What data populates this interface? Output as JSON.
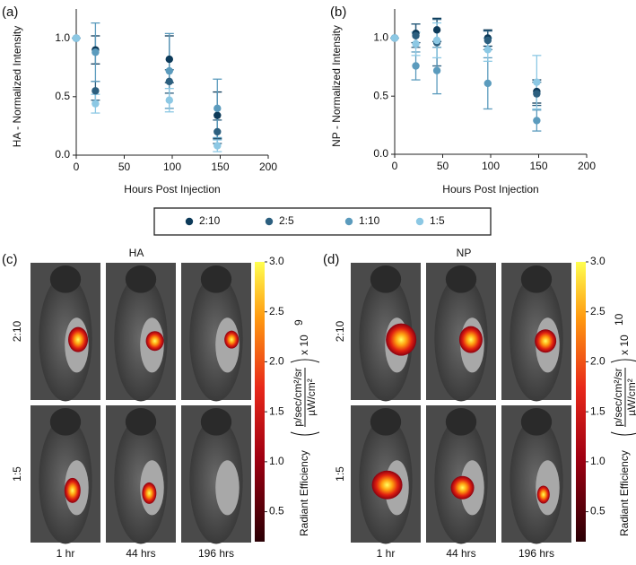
{
  "chart_data": [
    {
      "type": "scatter",
      "panel_label": "(a)",
      "y_label": "HA - Normalized Intensity",
      "x_label": "Hours Post Injection",
      "x": [
        0,
        20,
        97,
        147
      ],
      "xlim": [
        0,
        200
      ],
      "ylim": [
        0,
        1.25
      ],
      "xticks": [
        0,
        50,
        100,
        150,
        200
      ],
      "yticks": [
        {
          "value": 0,
          "label": "0.0"
        },
        0.5,
        {
          "value": 1,
          "label": "1.0"
        }
      ],
      "series": [
        {
          "name": "2:10",
          "color": "#0d3a59",
          "values": [
            1.0,
            0.9,
            0.82,
            0.34
          ],
          "errors": [
            0,
            0.12,
            0.2,
            0.2
          ]
        },
        {
          "name": "2:5",
          "color": "#2c5f7f",
          "values": [
            1.0,
            0.55,
            0.63,
            0.2
          ],
          "errors": [
            0,
            0.08,
            0.1,
            0.1
          ]
        },
        {
          "name": "1:10",
          "color": "#5b9bbd",
          "values": [
            1.0,
            0.88,
            0.72,
            0.4
          ],
          "errors": [
            0,
            0.25,
            0.32,
            0.25
          ]
        },
        {
          "name": "1:5",
          "color": "#8cc8e4",
          "values": [
            1.0,
            0.44,
            0.47,
            0.08
          ],
          "errors": [
            0,
            0.08,
            0.1,
            0.05
          ]
        }
      ]
    },
    {
      "type": "scatter",
      "panel_label": "(b)",
      "y_label": "NP - Normalized Intensity",
      "x_label": "Hours Post Injection",
      "x": [
        0,
        22,
        44,
        97,
        148
      ],
      "xlim": [
        0,
        200
      ],
      "ylim": [
        0,
        1.25
      ],
      "xticks": [
        0,
        50,
        100,
        150,
        200
      ],
      "yticks": [
        {
          "value": 0,
          "label": "0.0"
        },
        0.5,
        {
          "value": 1,
          "label": "1.0"
        }
      ],
      "series": [
        {
          "name": "2:10",
          "color": "#0d3a59",
          "values": [
            1.0,
            1.04,
            1.07,
            1.0,
            0.54
          ],
          "errors": [
            0,
            0.08,
            0.1,
            0.07,
            0.1
          ]
        },
        {
          "name": "2:5",
          "color": "#2c5f7f",
          "values": [
            1.0,
            1.02,
            0.96,
            0.98,
            0.52
          ],
          "errors": [
            0,
            0.1,
            0.2,
            0.08,
            0.1
          ]
        },
        {
          "name": "1:10",
          "color": "#5b9bbd",
          "values": [
            1.0,
            0.76,
            0.72,
            0.61,
            0.29
          ],
          "errors": [
            0,
            0.12,
            0.2,
            0.22,
            0.09
          ]
        },
        {
          "name": "1:5",
          "color": "#8cc8e4",
          "values": [
            1.0,
            0.95,
            0.98,
            0.9,
            0.62
          ],
          "errors": [
            0,
            0.1,
            0.15,
            0.1,
            0.23
          ]
        }
      ]
    }
  ],
  "panels": [
    {
      "label": "(c)",
      "title": "HA",
      "rows": [
        "2:10",
        "1:5"
      ],
      "times": [
        "1 hr",
        "44 hrs",
        "196 hrs"
      ],
      "colorbar": {
        "label": "Radiant Efficiency",
        "numerator": "p/sec/cm²/sr",
        "denominator": "µW/cm²",
        "multiplier": "x 10",
        "exponent": "9",
        "clim": [
          0.2,
          3.0
        ],
        "ticks": [
          0.5,
          {
            "value": 1,
            "label": "1.0"
          },
          1.5,
          {
            "value": 2,
            "label": "2.0"
          },
          2.5,
          {
            "value": 3,
            "label": "3.0"
          }
        ]
      }
    },
    {
      "label": "(d)",
      "title": "NP",
      "rows": [
        "2:10",
        "1:5"
      ],
      "times": [
        "1 hr",
        "44 hrs",
        "196 hrs"
      ],
      "colorbar": {
        "label": "Radiant Efficiency",
        "numerator": "p/sec/cm²/sr",
        "denominator": "µW/cm²",
        "multiplier": "x 10",
        "exponent": "10",
        "clim": [
          0.2,
          3.0
        ],
        "ticks": [
          0.5,
          {
            "value": 1,
            "label": "1.0"
          },
          1.5,
          {
            "value": 2,
            "label": "2.0"
          },
          2.5,
          {
            "value": 3,
            "label": "3.0"
          }
        ]
      }
    }
  ]
}
